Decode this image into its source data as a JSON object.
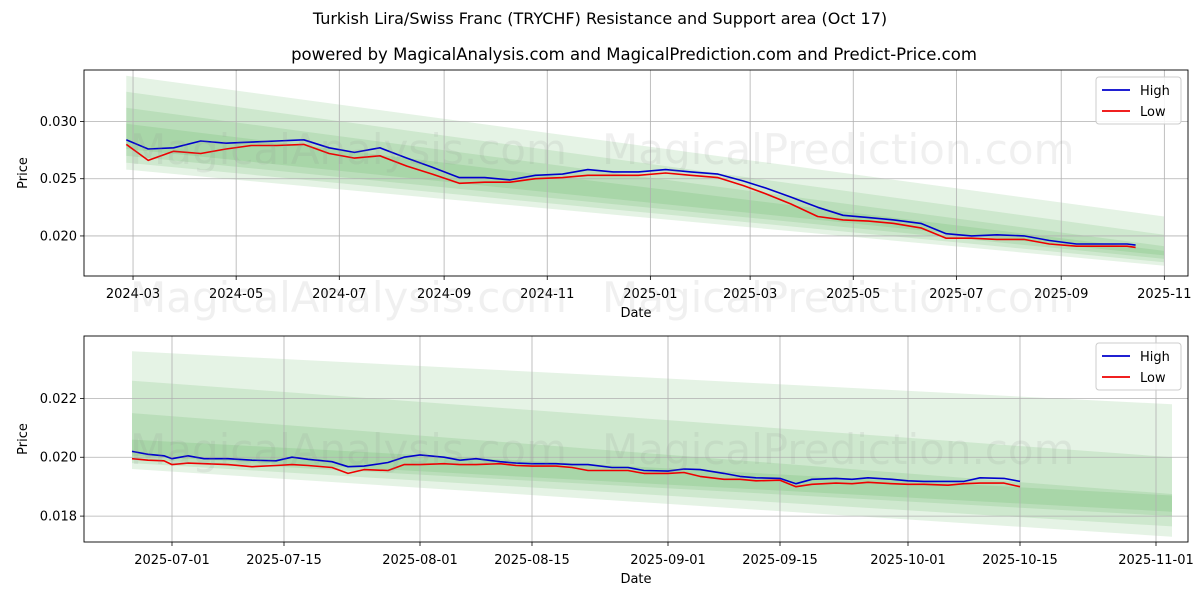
{
  "title": "Turkish Lira/Swiss Franc (TRYCHF) Resistance and Support area (Oct 17)",
  "subtitle": "powered by MagicalAnalysis.com and MagicalPrediction.com and Predict-Price.com",
  "watermarks": [
    "MagicalAnalysis.com",
    "MagicalPrediction.com"
  ],
  "colors": {
    "high": "#0000cc",
    "low": "#ee0000",
    "band": "#2ca02c",
    "grid": "#b0b0b0"
  },
  "chart_data": [
    {
      "type": "line",
      "xlabel": "Date",
      "ylabel": "Price",
      "legend": [
        "High",
        "Low"
      ],
      "legend_position": "top-right",
      "grid": true,
      "xlim": [
        "2024-02-01",
        "2025-11-15"
      ],
      "ylim": [
        0.0165,
        0.0345
      ],
      "x_ticks": [
        "2024-03",
        "2024-05",
        "2024-07",
        "2024-09",
        "2024-11",
        "2025-01",
        "2025-03",
        "2025-05",
        "2025-07",
        "2025-09",
        "2025-11"
      ],
      "x_tick_dates": [
        "2024-03-01",
        "2024-05-01",
        "2024-07-01",
        "2024-09-01",
        "2024-11-01",
        "2025-01-01",
        "2025-03-01",
        "2025-05-01",
        "2025-07-01",
        "2025-09-01",
        "2025-11-01"
      ],
      "y_ticks": [
        0.02,
        0.025,
        0.03
      ],
      "y_tick_labels": [
        "0.020",
        "0.025",
        "0.030"
      ],
      "series": [
        {
          "name": "High",
          "x": [
            "2024-02-26",
            "2024-03-10",
            "2024-03-25",
            "2024-04-10",
            "2024-04-25",
            "2024-05-10",
            "2024-05-25",
            "2024-06-10",
            "2024-06-25",
            "2024-07-10",
            "2024-07-25",
            "2024-08-10",
            "2024-08-25",
            "2024-09-10",
            "2024-09-25",
            "2024-10-10",
            "2024-10-25",
            "2024-11-10",
            "2024-11-25",
            "2024-12-10",
            "2024-12-25",
            "2025-01-10",
            "2025-01-25",
            "2025-02-10",
            "2025-02-25",
            "2025-03-10",
            "2025-03-25",
            "2025-04-10",
            "2025-04-25",
            "2025-05-10",
            "2025-05-25",
            "2025-06-10",
            "2025-06-25",
            "2025-07-10",
            "2025-07-25",
            "2025-08-10",
            "2025-08-25",
            "2025-09-10",
            "2025-09-25",
            "2025-10-10",
            "2025-10-15"
          ],
          "values": [
            0.0284,
            0.0276,
            0.0277,
            0.0283,
            0.0281,
            0.0282,
            0.0283,
            0.0284,
            0.0277,
            0.0273,
            0.0277,
            0.0268,
            0.026,
            0.0251,
            0.0251,
            0.0249,
            0.0253,
            0.0254,
            0.0258,
            0.0256,
            0.0256,
            0.0258,
            0.0256,
            0.0254,
            0.0248,
            0.0242,
            0.0234,
            0.0225,
            0.0218,
            0.0216,
            0.0214,
            0.0211,
            0.0202,
            0.02,
            0.0201,
            0.02,
            0.0196,
            0.0193,
            0.0193,
            0.0193,
            0.0192
          ]
        },
        {
          "name": "Low",
          "x": [
            "2024-02-26",
            "2024-03-10",
            "2024-03-25",
            "2024-04-10",
            "2024-04-25",
            "2024-05-10",
            "2024-05-25",
            "2024-06-10",
            "2024-06-25",
            "2024-07-10",
            "2024-07-25",
            "2024-08-10",
            "2024-08-25",
            "2024-09-10",
            "2024-09-25",
            "2024-10-10",
            "2024-10-25",
            "2024-11-10",
            "2024-11-25",
            "2024-12-10",
            "2024-12-25",
            "2025-01-10",
            "2025-01-25",
            "2025-02-10",
            "2025-02-25",
            "2025-03-10",
            "2025-03-25",
            "2025-04-10",
            "2025-04-25",
            "2025-05-10",
            "2025-05-25",
            "2025-06-10",
            "2025-06-25",
            "2025-07-10",
            "2025-07-25",
            "2025-08-10",
            "2025-08-25",
            "2025-09-10",
            "2025-09-25",
            "2025-10-10",
            "2025-10-15"
          ],
          "values": [
            0.028,
            0.0266,
            0.0274,
            0.0272,
            0.0276,
            0.0279,
            0.0279,
            0.028,
            0.0272,
            0.0268,
            0.027,
            0.0261,
            0.0254,
            0.0246,
            0.0247,
            0.0247,
            0.025,
            0.0251,
            0.0253,
            0.0253,
            0.0253,
            0.0255,
            0.0253,
            0.0251,
            0.0244,
            0.0237,
            0.0228,
            0.0217,
            0.0214,
            0.0213,
            0.0211,
            0.0207,
            0.0198,
            0.0198,
            0.0197,
            0.0197,
            0.0193,
            0.0191,
            0.0191,
            0.0191,
            0.019
          ]
        }
      ],
      "bands": [
        {
          "x": [
            "2024-02-26",
            "2025-11-01"
          ],
          "upper": [
            0.034,
            0.0217
          ],
          "lower": [
            0.0258,
            0.0174
          ]
        },
        {
          "x": [
            "2024-02-26",
            "2025-11-01"
          ],
          "upper": [
            0.0326,
            0.0201
          ],
          "lower": [
            0.0264,
            0.0177
          ]
        },
        {
          "x": [
            "2024-02-26",
            "2025-11-01"
          ],
          "upper": [
            0.0312,
            0.0191
          ],
          "lower": [
            0.027,
            0.018
          ]
        },
        {
          "x": [
            "2024-02-26",
            "2025-11-01"
          ],
          "upper": [
            0.0298,
            0.0187
          ],
          "lower": [
            0.0276,
            0.0183
          ]
        }
      ]
    },
    {
      "type": "line",
      "xlabel": "Date",
      "ylabel": "Price",
      "legend": [
        "High",
        "Low"
      ],
      "legend_position": "top-right",
      "grid": true,
      "xlim": [
        "2025-06-20",
        "2025-11-05"
      ],
      "ylim": [
        0.01712,
        0.02412
      ],
      "x_ticks": [
        "2025-07-01",
        "2025-07-15",
        "2025-08-01",
        "2025-08-15",
        "2025-09-01",
        "2025-09-15",
        "2025-10-01",
        "2025-10-15",
        "2025-11-01"
      ],
      "y_ticks": [
        0.018,
        0.02,
        0.022
      ],
      "y_tick_labels": [
        "0.018",
        "0.020",
        "0.022"
      ],
      "series": [
        {
          "name": "High",
          "x": [
            "2025-06-26",
            "2025-06-28",
            "2025-06-30",
            "2025-07-01",
            "2025-07-03",
            "2025-07-05",
            "2025-07-08",
            "2025-07-11",
            "2025-07-14",
            "2025-07-16",
            "2025-07-18",
            "2025-07-21",
            "2025-07-23",
            "2025-07-25",
            "2025-07-28",
            "2025-07-30",
            "2025-08-01",
            "2025-08-04",
            "2025-08-06",
            "2025-08-08",
            "2025-08-11",
            "2025-08-13",
            "2025-08-15",
            "2025-08-18",
            "2025-08-20",
            "2025-08-22",
            "2025-08-25",
            "2025-08-27",
            "2025-08-29",
            "2025-09-01",
            "2025-09-03",
            "2025-09-05",
            "2025-09-08",
            "2025-09-10",
            "2025-09-12",
            "2025-09-15",
            "2025-09-17",
            "2025-09-19",
            "2025-09-22",
            "2025-09-24",
            "2025-09-26",
            "2025-09-29",
            "2025-10-01",
            "2025-10-03",
            "2025-10-06",
            "2025-10-08",
            "2025-10-10",
            "2025-10-13",
            "2025-10-15"
          ],
          "values": [
            0.0202,
            0.0201,
            0.02005,
            0.01995,
            0.02005,
            0.01995,
            0.01995,
            0.0199,
            0.01988,
            0.02,
            0.01993,
            0.01985,
            0.01968,
            0.0197,
            0.01982,
            0.02,
            0.02008,
            0.02,
            0.0199,
            0.01995,
            0.01985,
            0.0198,
            0.01978,
            0.01978,
            0.01975,
            0.01975,
            0.01965,
            0.01965,
            0.01955,
            0.01953,
            0.0196,
            0.01958,
            0.01945,
            0.01935,
            0.0193,
            0.01928,
            0.0191,
            0.01925,
            0.01928,
            0.01925,
            0.0193,
            0.01925,
            0.0192,
            0.01918,
            0.01918,
            0.01918,
            0.0193,
            0.01928,
            0.01918
          ]
        },
        {
          "name": "Low",
          "x": [
            "2025-06-26",
            "2025-06-28",
            "2025-06-30",
            "2025-07-01",
            "2025-07-03",
            "2025-07-05",
            "2025-07-08",
            "2025-07-11",
            "2025-07-14",
            "2025-07-16",
            "2025-07-18",
            "2025-07-21",
            "2025-07-23",
            "2025-07-25",
            "2025-07-28",
            "2025-07-30",
            "2025-08-01",
            "2025-08-04",
            "2025-08-06",
            "2025-08-08",
            "2025-08-11",
            "2025-08-13",
            "2025-08-15",
            "2025-08-18",
            "2025-08-20",
            "2025-08-22",
            "2025-08-25",
            "2025-08-27",
            "2025-08-29",
            "2025-09-01",
            "2025-09-03",
            "2025-09-05",
            "2025-09-08",
            "2025-09-10",
            "2025-09-12",
            "2025-09-15",
            "2025-09-17",
            "2025-09-19",
            "2025-09-22",
            "2025-09-24",
            "2025-09-26",
            "2025-09-29",
            "2025-10-01",
            "2025-10-03",
            "2025-10-06",
            "2025-10-08",
            "2025-10-10",
            "2025-10-13",
            "2025-10-15"
          ],
          "values": [
            0.01995,
            0.0199,
            0.01988,
            0.01975,
            0.0198,
            0.01978,
            0.01975,
            0.01968,
            0.01972,
            0.01975,
            0.01972,
            0.01965,
            0.01945,
            0.01958,
            0.01955,
            0.01975,
            0.01975,
            0.01978,
            0.01975,
            0.01975,
            0.01978,
            0.01972,
            0.0197,
            0.0197,
            0.01965,
            0.01955,
            0.01955,
            0.01955,
            0.01945,
            0.01945,
            0.01948,
            0.01935,
            0.01925,
            0.01925,
            0.0192,
            0.01922,
            0.019,
            0.01908,
            0.01912,
            0.0191,
            0.01915,
            0.0191,
            0.01908,
            0.01908,
            0.01905,
            0.0191,
            0.01912,
            0.01912,
            0.019
          ]
        }
      ],
      "bands": [
        {
          "x": [
            "2025-06-26",
            "2025-11-03"
          ],
          "upper": [
            0.0236,
            0.0218
          ],
          "lower": [
            0.0196,
            0.0173
          ]
        },
        {
          "x": [
            "2025-06-26",
            "2025-11-03"
          ],
          "upper": [
            0.0226,
            0.02
          ],
          "lower": [
            0.0198,
            0.01765
          ]
        },
        {
          "x": [
            "2025-06-26",
            "2025-11-03"
          ],
          "upper": [
            0.0215,
            0.01875
          ],
          "lower": [
            0.01995,
            0.018
          ]
        },
        {
          "x": [
            "2025-06-26",
            "2025-11-03"
          ],
          "upper": [
            0.0206,
            0.0187
          ],
          "lower": [
            0.02005,
            0.01815
          ]
        }
      ]
    }
  ]
}
